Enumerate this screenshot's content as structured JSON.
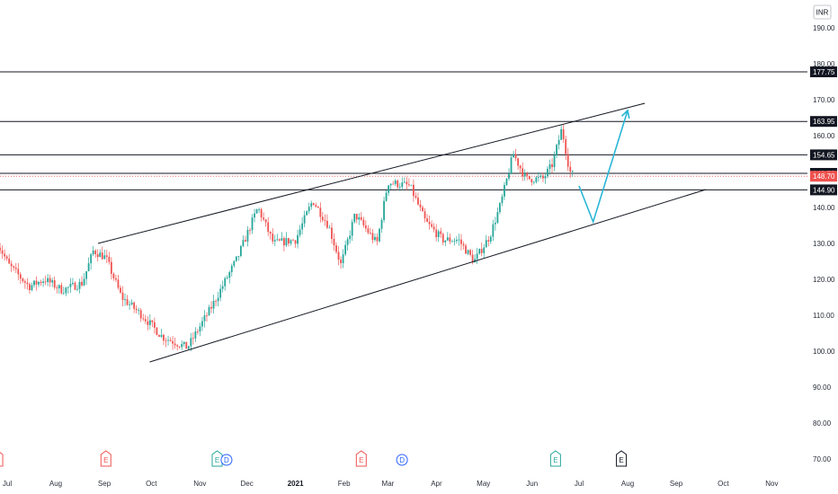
{
  "currency_button": "INR",
  "colors": {
    "up": "#26a69a",
    "down": "#ef5350",
    "line": "#131722",
    "projection": "#29b6d6",
    "label_bg": "#131722",
    "price_label_bg": "#ef5350",
    "event_earnings_red": "#ef5350",
    "event_earnings_teal": "#26a69a",
    "event_dividend": "#2962ff",
    "event_future": "#131722"
  },
  "chart_data": {
    "type": "candlestick",
    "title": "",
    "y_axis": {
      "min": 65,
      "max": 195,
      "ticks": [
        "190.00",
        "180.00",
        "170.00",
        "160.00",
        "150.00",
        "140.00",
        "130.00",
        "120.00",
        "110.00",
        "100.00",
        "90.00",
        "80.00",
        "70.00"
      ]
    },
    "x_axis": {
      "ticks": [
        {
          "label": "Jul",
          "date": "2020-07-01",
          "bold": false
        },
        {
          "label": "Aug",
          "date": "2020-08-01",
          "bold": false
        },
        {
          "label": "Sep",
          "date": "2020-09-01",
          "bold": false
        },
        {
          "label": "Oct",
          "date": "2020-10-01",
          "bold": false
        },
        {
          "label": "Nov",
          "date": "2020-11-01",
          "bold": false
        },
        {
          "label": "Dec",
          "date": "2020-12-01",
          "bold": false
        },
        {
          "label": "2021",
          "date": "2021-01-01",
          "bold": true
        },
        {
          "label": "Feb",
          "date": "2021-02-01",
          "bold": false
        },
        {
          "label": "Mar",
          "date": "2021-03-01",
          "bold": false
        },
        {
          "label": "Apr",
          "date": "2021-04-01",
          "bold": false
        },
        {
          "label": "May",
          "date": "2021-05-01",
          "bold": false
        },
        {
          "label": "Jun",
          "date": "2021-06-01",
          "bold": false
        },
        {
          "label": "Jul",
          "date": "2021-07-01",
          "bold": false
        },
        {
          "label": "Aug",
          "date": "2021-08-01",
          "bold": false
        },
        {
          "label": "Sep",
          "date": "2021-09-01",
          "bold": false
        },
        {
          "label": "Oct",
          "date": "2021-10-01",
          "bold": false
        },
        {
          "label": "Nov",
          "date": "2021-11-01",
          "bold": false
        }
      ]
    },
    "price_path": [
      {
        "date": "2020-06-25",
        "price": 130
      },
      {
        "date": "2020-07-02",
        "price": 124
      },
      {
        "date": "2020-07-15",
        "price": 118
      },
      {
        "date": "2020-07-25",
        "price": 120
      },
      {
        "date": "2020-08-05",
        "price": 117
      },
      {
        "date": "2020-08-18",
        "price": 119
      },
      {
        "date": "2020-08-25",
        "price": 128
      },
      {
        "date": "2020-09-02",
        "price": 126
      },
      {
        "date": "2020-09-12",
        "price": 115
      },
      {
        "date": "2020-09-25",
        "price": 110
      },
      {
        "date": "2020-10-08",
        "price": 104
      },
      {
        "date": "2020-10-24",
        "price": 101
      },
      {
        "date": "2020-11-08",
        "price": 112
      },
      {
        "date": "2020-11-25",
        "price": 126
      },
      {
        "date": "2020-12-08",
        "price": 140
      },
      {
        "date": "2020-12-18",
        "price": 130
      },
      {
        "date": "2021-01-01",
        "price": 131
      },
      {
        "date": "2021-01-12",
        "price": 142
      },
      {
        "date": "2021-01-22",
        "price": 135
      },
      {
        "date": "2021-01-30",
        "price": 124
      },
      {
        "date": "2021-02-08",
        "price": 138
      },
      {
        "date": "2021-02-22",
        "price": 130
      },
      {
        "date": "2021-03-01",
        "price": 147
      },
      {
        "date": "2021-03-15",
        "price": 146
      },
      {
        "date": "2021-03-25",
        "price": 136
      },
      {
        "date": "2021-04-05",
        "price": 131
      },
      {
        "date": "2021-04-15",
        "price": 131
      },
      {
        "date": "2021-04-25",
        "price": 125
      },
      {
        "date": "2021-05-05",
        "price": 132
      },
      {
        "date": "2021-05-12",
        "price": 141
      },
      {
        "date": "2021-05-20",
        "price": 155
      },
      {
        "date": "2021-05-28",
        "price": 148
      },
      {
        "date": "2021-06-08",
        "price": 148
      },
      {
        "date": "2021-06-14",
        "price": 152
      },
      {
        "date": "2021-06-20",
        "price": 162
      },
      {
        "date": "2021-06-25",
        "price": 150
      },
      {
        "date": "2021-06-28",
        "price": 148.7
      }
    ],
    "horizontal_levels": [
      {
        "value": 177.75,
        "label": "177.75"
      },
      {
        "value": 163.95,
        "label": "163.95"
      },
      {
        "value": 154.65,
        "label": "154.65"
      },
      {
        "value": 149.5,
        "label": "149.50"
      },
      {
        "value": 144.9,
        "label": "144.90"
      }
    ],
    "last_price": {
      "value": 148.7,
      "label": "148.70"
    },
    "trend_lines": [
      {
        "name": "upper-channel",
        "from": {
          "date": "2020-08-28",
          "price": 130
        },
        "to": {
          "date": "2021-08-12",
          "price": 169
        }
      },
      {
        "name": "lower-channel",
        "from": {
          "date": "2020-09-30",
          "price": 97
        },
        "to": {
          "date": "2021-09-20",
          "price": 145
        }
      }
    ],
    "projection": [
      {
        "date": "2021-07-01",
        "price": 146
      },
      {
        "date": "2021-07-10",
        "price": 136
      },
      {
        "date": "2021-08-01",
        "price": 167
      }
    ],
    "events": [
      {
        "type": "E",
        "date": "2020-06-25",
        "color": "red"
      },
      {
        "type": "E",
        "date": "2020-09-02",
        "color": "red"
      },
      {
        "type": "E",
        "date": "2020-11-12",
        "color": "teal"
      },
      {
        "type": "D",
        "date": "2020-11-18",
        "color": "blue"
      },
      {
        "type": "E",
        "date": "2021-02-12",
        "color": "red"
      },
      {
        "type": "D",
        "date": "2021-03-10",
        "color": "blue"
      },
      {
        "type": "E",
        "date": "2021-06-16",
        "color": "teal"
      },
      {
        "type": "E",
        "date": "2021-07-28",
        "color": "future"
      }
    ]
  }
}
